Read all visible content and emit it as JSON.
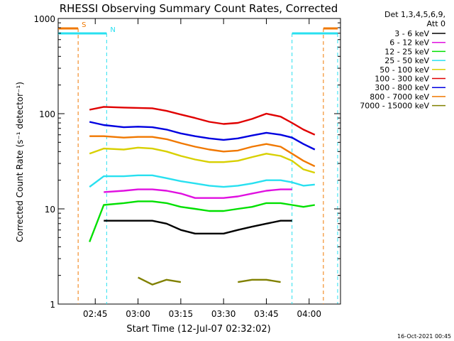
{
  "chart_data": {
    "type": "line",
    "title": "RHESSI Observing Summary Count Rates, Corrected",
    "xlabel": "Start Time (12-Jul-07 02:32:02)",
    "ylabel": "Corrected Count Rate (s⁻¹ detector⁻¹)",
    "yscale": "log",
    "xlim": [
      "02:32",
      "04:11"
    ],
    "ylim": [
      1,
      1000
    ],
    "x_ticks": [
      "02:45",
      "03:00",
      "03:15",
      "03:30",
      "03:45",
      "04:00"
    ],
    "y_ticks": [
      {
        "value": 1,
        "label": "1"
      },
      {
        "value": 10,
        "label": "10"
      },
      {
        "value": 100,
        "label": "100"
      },
      {
        "value": 1000,
        "label": "1000"
      }
    ],
    "grid": false,
    "legend_placement": "right",
    "legend_header": [
      "Det 1,3,4,5,6,9,",
      "Att 0"
    ],
    "timestamp": "16-Oct-2021 00:45",
    "flag_markers": [
      {
        "label": "S",
        "color": "#f07800",
        "line_times": [
          "02:39",
          "04:05"
        ],
        "bar_ranges": [
          [
            "02:32",
            "02:39"
          ],
          [
            "04:05",
            "04:10"
          ]
        ]
      },
      {
        "label": "N",
        "color": "#28e0f0",
        "line_times": [
          "02:49",
          "03:54",
          "04:10"
        ],
        "bar_ranges": [
          [
            "02:32",
            "02:49"
          ],
          [
            "03:54",
            "04:10"
          ]
        ]
      }
    ],
    "x": [
      "02:43",
      "02:48",
      "02:55",
      "03:00",
      "03:05",
      "03:10",
      "03:15",
      "03:20",
      "03:25",
      "03:30",
      "03:35",
      "03:40",
      "03:45",
      "03:50",
      "03:54",
      "03:58",
      "04:02"
    ],
    "series": [
      {
        "name": "3 - 6 keV",
        "color": "#000000",
        "values": [
          null,
          7.5,
          7.5,
          7.5,
          7.5,
          7.0,
          6.0,
          5.5,
          5.5,
          5.5,
          6.0,
          6.5,
          7.0,
          7.5,
          7.5,
          null,
          null
        ]
      },
      {
        "name": "6 - 12 keV",
        "color": "#e010e0",
        "values": [
          null,
          15,
          15.5,
          16,
          16,
          15.5,
          14.5,
          13,
          13,
          13,
          13.5,
          14.5,
          15.5,
          16,
          16,
          null,
          null
        ]
      },
      {
        "name": "12 - 25 keV",
        "color": "#00e000",
        "values": [
          4.5,
          11,
          11.5,
          12,
          12,
          11.5,
          10.5,
          10,
          9.5,
          9.5,
          10,
          10.5,
          11.5,
          11.5,
          11,
          10.5,
          11
        ]
      },
      {
        "name": "25 - 50 keV",
        "color": "#28e0f0",
        "values": [
          17,
          22,
          22,
          22.5,
          22.5,
          21,
          19.5,
          18.5,
          17.5,
          17,
          17.5,
          18.5,
          20,
          20,
          19,
          17.5,
          18
        ]
      },
      {
        "name": "50 - 100 keV",
        "color": "#d8d000",
        "values": [
          38,
          43,
          42,
          44,
          43,
          40,
          36,
          33,
          31,
          31,
          32,
          35,
          38,
          36,
          32,
          26,
          24
        ]
      },
      {
        "name": "100 - 300 keV",
        "color": "#e00000",
        "values": [
          110,
          118,
          116,
          115,
          114,
          107,
          98,
          90,
          82,
          78,
          80,
          88,
          100,
          93,
          80,
          68,
          60
        ]
      },
      {
        "name": "300 - 800 keV",
        "color": "#0000e0",
        "values": [
          82,
          76,
          72,
          73,
          72,
          68,
          62,
          58,
          55,
          53,
          55,
          59,
          63,
          60,
          56,
          48,
          42
        ]
      },
      {
        "name": "800 - 7000 keV",
        "color": "#f07800",
        "values": [
          58,
          58,
          56,
          57,
          57,
          54,
          49,
          45,
          42,
          40,
          41,
          45,
          48,
          45,
          38,
          32,
          28
        ]
      },
      {
        "name": "7000 - 15000 keV",
        "color": "#808000",
        "values": [
          null,
          null,
          null,
          1.9,
          1.6,
          1.8,
          1.7,
          null,
          null,
          null,
          1.7,
          1.8,
          1.8,
          1.7,
          null,
          null,
          null
        ]
      }
    ]
  }
}
